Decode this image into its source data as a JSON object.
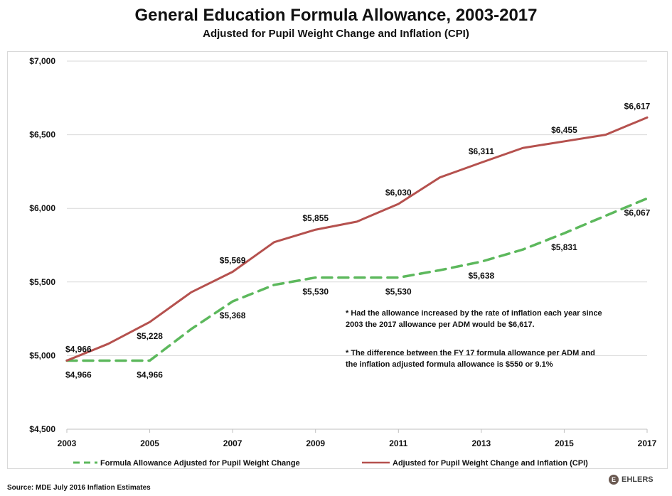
{
  "chart_data": {
    "type": "line",
    "title": "General Education Formula Allowance, 2003-2017",
    "subtitle": "Adjusted for Pupil Weight Change and Inflation (CPI)",
    "xlabel": "",
    "ylabel": "",
    "x": [
      2003,
      2004,
      2005,
      2006,
      2007,
      2008,
      2009,
      2010,
      2011,
      2012,
      2013,
      2014,
      2015,
      2016,
      2017
    ],
    "x_tick_labels": [
      "2003",
      "2005",
      "2007",
      "2009",
      "2011",
      "2013",
      "2015",
      "2017"
    ],
    "y_tick_labels": [
      "$7,000",
      "$6,500",
      "$6,000",
      "$5,500",
      "$5,000",
      "$4,500"
    ],
    "ylim": [
      4500,
      7000
    ],
    "grid": true,
    "legend_position": "bottom",
    "series": [
      {
        "name": "Formula Allowance Adjusted for Pupil Weight Change",
        "color": "#5cb85c",
        "style": "dashed",
        "values": [
          4966,
          4966,
          4966,
          5180,
          5368,
          5480,
          5530,
          5530,
          5530,
          5580,
          5638,
          5720,
          5831,
          5950,
          6067
        ]
      },
      {
        "name": "Adjusted for Pupil Weight Change and Inflation (CPI)",
        "color": "#b5514e",
        "style": "solid",
        "values": [
          4966,
          5080,
          5228,
          5430,
          5569,
          5770,
          5855,
          5910,
          6030,
          6210,
          6311,
          6410,
          6455,
          6500,
          6617
        ]
      }
    ],
    "data_labels": [
      {
        "series": 1,
        "x": 2003,
        "text": "$4,966",
        "pos": "above"
      },
      {
        "series": 1,
        "x": 2005,
        "text": "$5,228",
        "pos": "below"
      },
      {
        "series": 1,
        "x": 2007,
        "text": "$5,569",
        "pos": "above"
      },
      {
        "series": 1,
        "x": 2009,
        "text": "$5,855",
        "pos": "above"
      },
      {
        "series": 1,
        "x": 2011,
        "text": "$6,030",
        "pos": "above"
      },
      {
        "series": 1,
        "x": 2013,
        "text": "$6,311",
        "pos": "above"
      },
      {
        "series": 1,
        "x": 2015,
        "text": "$6,455",
        "pos": "above"
      },
      {
        "series": 1,
        "x": 2017,
        "text": "$6,617",
        "pos": "above"
      },
      {
        "series": 0,
        "x": 2003,
        "text": "$4,966",
        "pos": "below"
      },
      {
        "series": 0,
        "x": 2005,
        "text": "$4,966",
        "pos": "below"
      },
      {
        "series": 0,
        "x": 2007,
        "text": "$5,368",
        "pos": "below"
      },
      {
        "series": 0,
        "x": 2009,
        "text": "$5,530",
        "pos": "below"
      },
      {
        "series": 0,
        "x": 2011,
        "text": "$5,530",
        "pos": "below"
      },
      {
        "series": 0,
        "x": 2013,
        "text": "$5,638",
        "pos": "below"
      },
      {
        "series": 0,
        "x": 2015,
        "text": "$5,831",
        "pos": "below"
      },
      {
        "series": 0,
        "x": 2017,
        "text": "$6,067",
        "pos": "below"
      }
    ],
    "annotations": [
      "* Had the allowance increased by the rate of inflation each year since",
      "2003 the 2017 allowance per ADM would be $6,617.",
      "* The difference  between  the FY 17 formula allowance per ADM and",
      "the inflation adjusted formula allowance is $550 or 9.1%"
    ]
  },
  "source": "Source: MDE July 2016 Inflation Estimates",
  "logo_text": "EHLERS",
  "logo_mark": "E"
}
